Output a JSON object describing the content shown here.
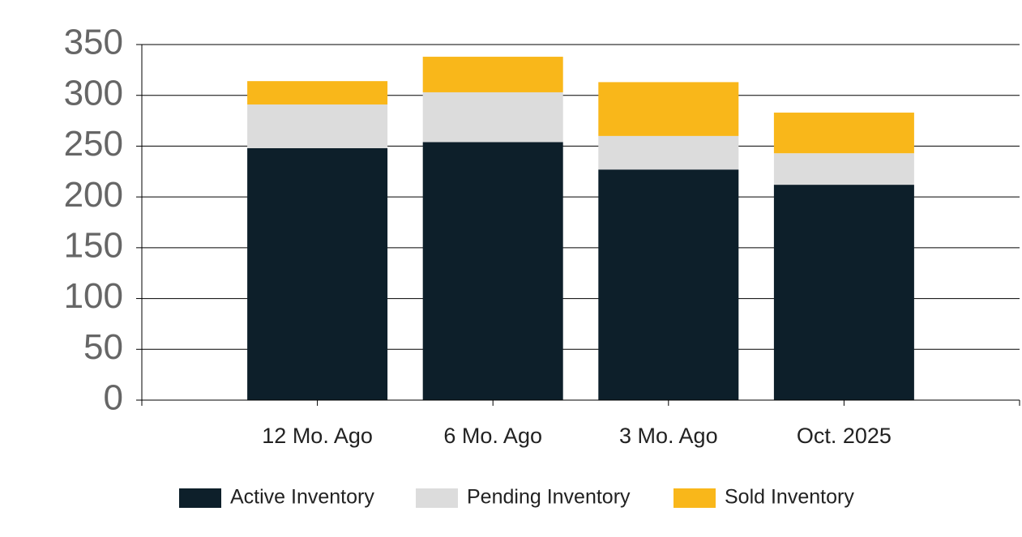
{
  "chart_data": {
    "type": "stacked_bar",
    "categories": [
      "12 Mo. Ago",
      "6 Mo. Ago",
      "3 Mo. Ago",
      "Oct. 2025"
    ],
    "series": [
      {
        "name": "Active Inventory",
        "color": "#0d1f2a",
        "values": [
          248,
          254,
          227,
          212
        ]
      },
      {
        "name": "Pending Inventory",
        "color": "#dcdcdc",
        "values": [
          43,
          49,
          33,
          31
        ]
      },
      {
        "name": "Sold Inventory",
        "color": "#f9b71a",
        "values": [
          23,
          35,
          53,
          40
        ]
      }
    ],
    "ylim": [
      0,
      350
    ],
    "yticks": [
      0,
      50,
      100,
      150,
      200,
      250,
      300,
      350
    ],
    "grid": true,
    "legend": "bottom"
  }
}
